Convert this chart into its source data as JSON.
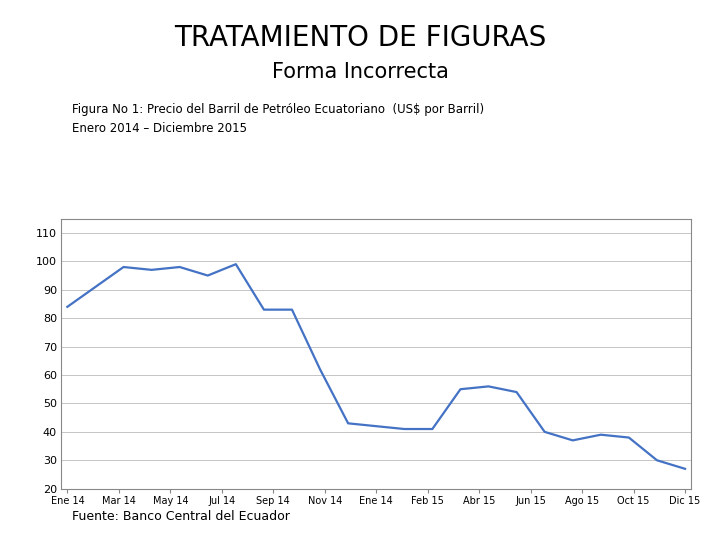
{
  "title1": "TRATAMIENTO DE FIGURAS",
  "title2": "Forma Incorrecta",
  "caption_line1": "Figura No 1: Precio del Barril de Petróleo Ecuatoriano  (US$ por Barril)",
  "caption_line2": "Enero 2014 – Diciembre 2015",
  "footnote": "Fuente: Banco Central del Ecuador",
  "line_color": "#4472C4",
  "line_width": 1.6,
  "background_color": "#ffffff",
  "ylim": [
    20,
    115
  ],
  "yticks": [
    20,
    30,
    40,
    50,
    60,
    70,
    80,
    90,
    100,
    110
  ],
  "x_tick_labels": [
    "Ene 14",
    "Mar 14",
    "May 14",
    "Jul 14",
    "Sep 14",
    "Nov 14",
    "Ene 14",
    "Feb 15",
    "Abr 15",
    "Jun 15",
    "Ago 15",
    "Oct 15",
    "Dic 15"
  ],
  "data_y": [
    84,
    91,
    98,
    97,
    98,
    95,
    99,
    83,
    83,
    62,
    43,
    42,
    41,
    41,
    55,
    56,
    54,
    40,
    37,
    39,
    38,
    30,
    27
  ]
}
